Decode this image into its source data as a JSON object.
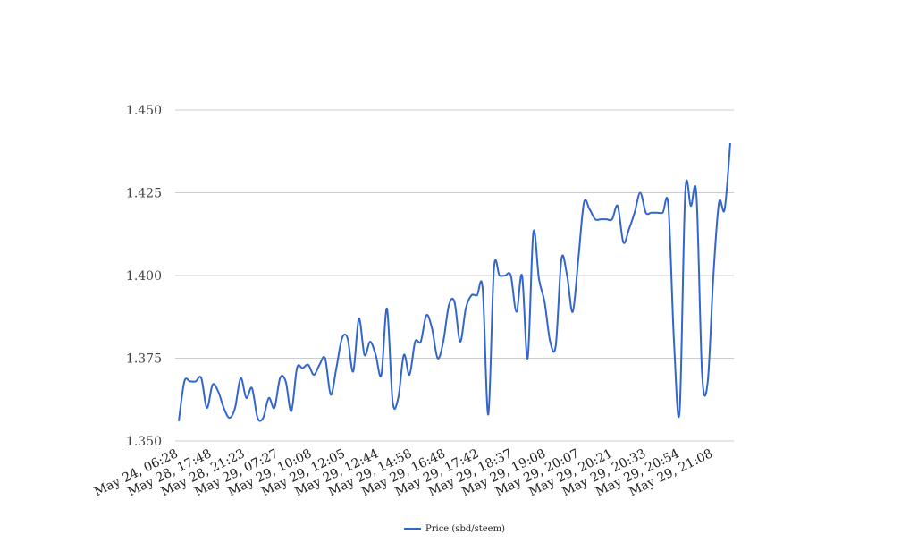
{
  "chart_data": {
    "type": "line",
    "title": "",
    "xlabel": "",
    "ylabel": "",
    "ylim": [
      1.35,
      1.45
    ],
    "y_ticks": [
      "1.350",
      "1.375",
      "1.400",
      "1.425",
      "1.450"
    ],
    "x_tick_labels": [
      "May 24, 06:28",
      "May 28, 17:48",
      "May 28, 21:23",
      "May 29, 07:27",
      "May 29, 10:08",
      "May 29, 12:05",
      "May 29, 12:44",
      "May 29, 14:58",
      "May 29, 16:48",
      "May 29, 17:42",
      "May 29, 18:37",
      "May 29, 19:08",
      "May 29, 20:07",
      "May 29, 20:21",
      "May 29, 20:33",
      "May 29, 20:54",
      "May 29, 21:08"
    ],
    "grid": true,
    "legend_position": "bottom",
    "series": [
      {
        "name": "Price (sbd/steem)",
        "color": "#3366cc",
        "values": [
          1.356,
          1.368,
          1.368,
          1.368,
          1.369,
          1.36,
          1.367,
          1.365,
          1.36,
          1.357,
          1.36,
          1.369,
          1.363,
          1.366,
          1.357,
          1.357,
          1.363,
          1.36,
          1.369,
          1.368,
          1.359,
          1.372,
          1.372,
          1.373,
          1.37,
          1.373,
          1.375,
          1.364,
          1.372,
          1.381,
          1.381,
          1.371,
          1.387,
          1.376,
          1.38,
          1.376,
          1.37,
          1.39,
          1.362,
          1.363,
          1.376,
          1.37,
          1.38,
          1.38,
          1.388,
          1.384,
          1.375,
          1.38,
          1.391,
          1.392,
          1.38,
          1.39,
          1.394,
          1.394,
          1.396,
          1.358,
          1.402,
          1.4,
          1.4,
          1.4,
          1.389,
          1.4,
          1.375,
          1.413,
          1.399,
          1.392,
          1.38,
          1.379,
          1.405,
          1.4,
          1.389,
          1.405,
          1.422,
          1.42,
          1.417,
          1.417,
          1.417,
          1.417,
          1.421,
          1.41,
          1.414,
          1.419,
          1.425,
          1.419,
          1.419,
          1.419,
          1.419,
          1.421,
          1.38,
          1.359,
          1.425,
          1.421,
          1.424,
          1.37,
          1.368,
          1.4,
          1.422,
          1.42,
          1.44
        ]
      }
    ]
  }
}
